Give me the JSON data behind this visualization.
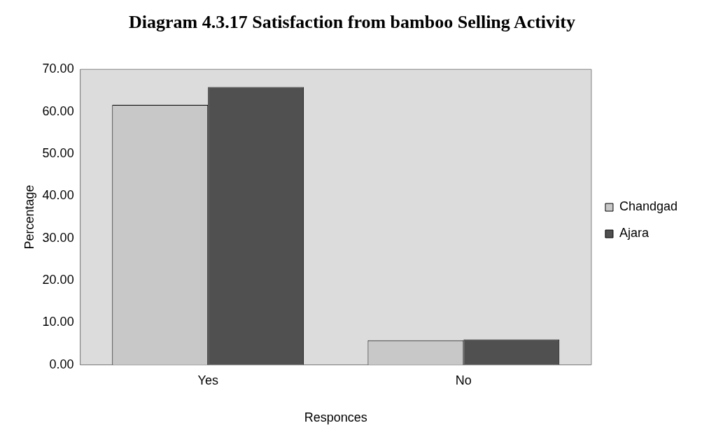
{
  "chart_data": {
    "type": "bar",
    "title": "Diagram 4.3.17 Satisfaction from bamboo Selling Activity",
    "xlabel": "Responces",
    "ylabel": "Percentage",
    "categories": [
      "Yes",
      "No"
    ],
    "series": [
      {
        "name": "Chandgad",
        "color": "#c8c8c8",
        "values": [
          61.6,
          5.8
        ]
      },
      {
        "name": "Ajara",
        "color": "#505050",
        "values": [
          65.8,
          6.0
        ]
      }
    ],
    "ylim": [
      0,
      70
    ],
    "yticks": [
      {
        "value": 0,
        "label": "0.00"
      },
      {
        "value": 10,
        "label": "10.00"
      },
      {
        "value": 20,
        "label": "20.00"
      },
      {
        "value": 30,
        "label": "30.00"
      },
      {
        "value": 40,
        "label": "40.00"
      },
      {
        "value": 50,
        "label": "50.00"
      },
      {
        "value": 60,
        "label": "60.00"
      },
      {
        "value": 70,
        "label": "70.00"
      }
    ],
    "grid": false,
    "legend": "right"
  }
}
